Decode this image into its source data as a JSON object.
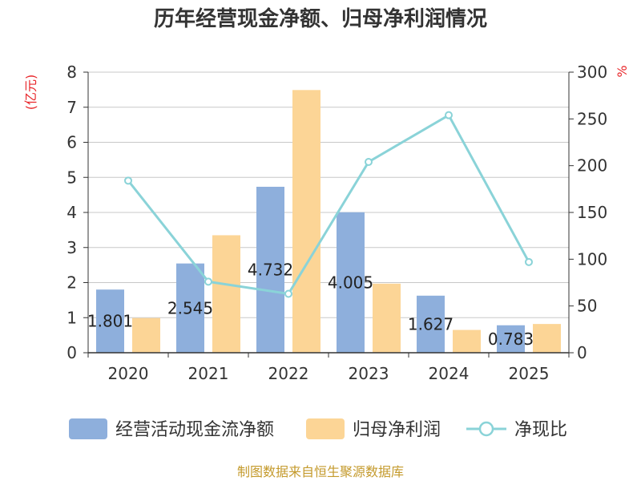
{
  "chart_data": {
    "type": "bar",
    "title": "历年经营现金净额、归母净利润情况",
    "y_left_unit": "(亿元)",
    "y_right_unit": "%",
    "categories": [
      "2020",
      "2021",
      "2022",
      "2023",
      "2024",
      "2025"
    ],
    "y_left_range": [
      0,
      8
    ],
    "y_left_ticks": [
      "0",
      "1",
      "2",
      "3",
      "4",
      "5",
      "6",
      "7",
      "8"
    ],
    "y_right_range": [
      0,
      300
    ],
    "y_right_ticks": [
      "0",
      "50",
      "100",
      "150",
      "200",
      "250",
      "300"
    ],
    "grid": true,
    "legend_position": "bottom",
    "series": [
      {
        "name": "经营活动现金流净额",
        "kind": "bar",
        "axis": "left",
        "color": "#8eafdc",
        "values": [
          1.801,
          2.545,
          4.732,
          4.005,
          1.627,
          0.783
        ],
        "labels": [
          "1.801",
          "2.545",
          "4.732",
          "4.005",
          "1.627",
          "0.783"
        ]
      },
      {
        "name": "归母净利润",
        "kind": "bar",
        "axis": "left",
        "color": "#fcd596",
        "values": [
          0.99,
          3.35,
          7.49,
          1.97,
          0.65,
          0.82
        ]
      },
      {
        "name": "净现比",
        "kind": "line",
        "axis": "right",
        "color": "#8ad3d8",
        "values": [
          184,
          76,
          63,
          204,
          254,
          97
        ]
      }
    ],
    "source": "制图数据来自恒生聚源数据库"
  }
}
